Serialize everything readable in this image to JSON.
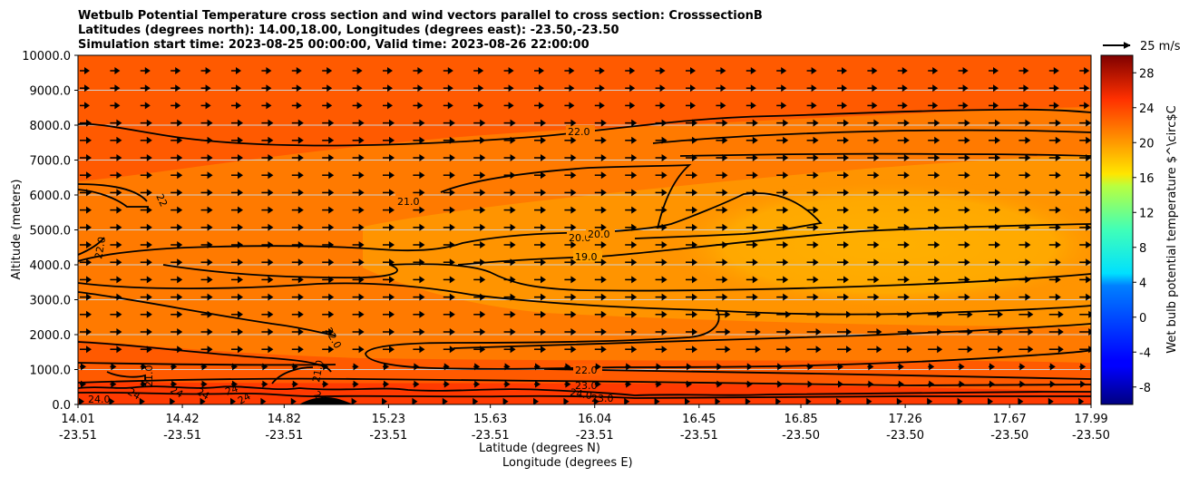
{
  "chart_data": {
    "type": "heatmap",
    "title_lines": [
      "Wetbulb Potential Temperature cross section and wind vectors parallel to cross section: CrosssectionB",
      "Latitudes (degrees north): 14.00,18.00, Longitudes (degrees east): -23.50,-23.50",
      "Simulation start time: 2023-08-25 00:00:00, Valid time: 2023-08-26 22:00:00"
    ],
    "ylabel": "Altitude (meters)",
    "xlabel_lat": "Latitude (degrees N)",
    "xlabel_lon": "Longitude (degrees E)",
    "ylim": [
      0,
      10000
    ],
    "yticks": [
      "0.0",
      "1000.0",
      "2000.0",
      "3000.0",
      "4000.0",
      "5000.0",
      "6000.0",
      "7000.0",
      "8000.0",
      "9000.0",
      "10000.0"
    ],
    "y_tick_values": [
      0,
      1000,
      2000,
      3000,
      4000,
      5000,
      6000,
      7000,
      8000,
      9000,
      10000
    ],
    "xlim": [
      14.01,
      17.99
    ],
    "x_tick_values": [
      14.01,
      14.42,
      14.82,
      15.23,
      15.63,
      16.04,
      16.45,
      16.85,
      17.26,
      17.67,
      17.99
    ],
    "xticks_lat": [
      "14.01",
      "14.42",
      "14.82",
      "15.23",
      "15.63",
      "16.04",
      "16.45",
      "16.85",
      "17.26",
      "17.67",
      "17.99"
    ],
    "xticks_lon": [
      "-23.51",
      "-23.51",
      "-23.51",
      "-23.51",
      "-23.51",
      "-23.51",
      "-23.51",
      "-23.50",
      "-23.50",
      "-23.50",
      "-23.50"
    ],
    "grid": "horizontal",
    "colorbar": {
      "label": "Wet bulb potential temperature $^\\circ$C",
      "range": [
        -10,
        30
      ],
      "ticks": [
        "-8",
        "-4",
        "0",
        "4",
        "8",
        "12",
        "16",
        "20",
        "24",
        "28"
      ],
      "tick_values": [
        -8,
        -4,
        0,
        4,
        8,
        12,
        16,
        20,
        24,
        28
      ],
      "colormap": "jet"
    },
    "quiver_key": {
      "label": "25 m/s"
    },
    "contour_labels": [
      {
        "text": "22.0",
        "lat": 16.0,
        "alt": 7750
      },
      {
        "text": "21.0",
        "lat": 15.3,
        "alt": 5800
      },
      {
        "text": "22",
        "lat": 14.36,
        "alt": 5900
      },
      {
        "text": "22.0",
        "lat": 14.1,
        "alt": 4550
      },
      {
        "text": "20.0",
        "lat": 16.0,
        "alt": 4750
      },
      {
        "text": "20.0",
        "lat": 16.18,
        "alt": 4800
      },
      {
        "text": "19.0",
        "lat": 16.0,
        "alt": 4250
      },
      {
        "text": "22.0",
        "lat": 14.98,
        "alt": 1900
      },
      {
        "text": "21.0",
        "lat": 14.28,
        "alt": 800
      },
      {
        "text": "21.0",
        "lat": 14.92,
        "alt": 850
      },
      {
        "text": "22.0",
        "lat": 16.0,
        "alt": 1000
      },
      {
        "text": "23.0",
        "lat": 16.0,
        "alt": 550
      },
      {
        "text": "24.0",
        "lat": 16.0,
        "alt": 350
      },
      {
        "text": "23.0",
        "lat": 16.1,
        "alt": 300
      },
      {
        "text": "24.0",
        "lat": 14.1,
        "alt": 150
      },
      {
        "text": "24",
        "lat": 14.22,
        "alt": 250
      },
      {
        "text": "24",
        "lat": 14.4,
        "alt": 250
      },
      {
        "text": "24",
        "lat": 14.5,
        "alt": 200
      },
      {
        "text": "24",
        "lat": 14.62,
        "alt": 200
      },
      {
        "text": "24",
        "lat": 14.7,
        "alt": 150
      },
      {
        "text": "24.0",
        "lat": 14.95,
        "alt": 250
      }
    ]
  }
}
